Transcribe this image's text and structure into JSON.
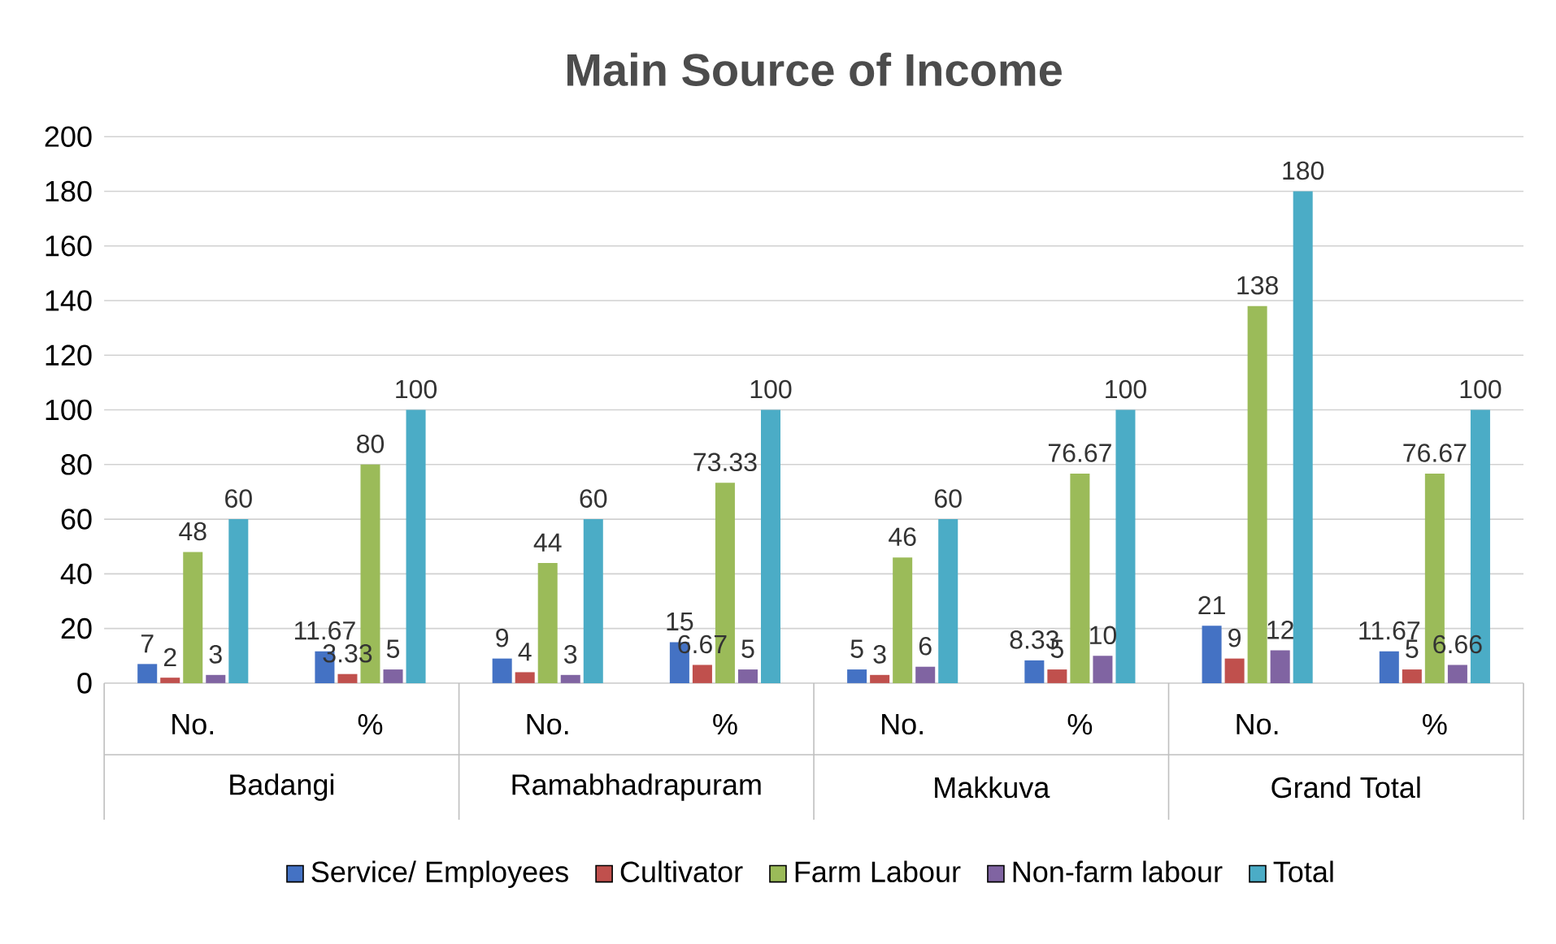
{
  "chart_data": {
    "type": "bar",
    "title": "Main Source of Income",
    "categories": [
      "No.",
      "%",
      "No.",
      "%",
      "No.",
      "%",
      "No.",
      "%"
    ],
    "annotations": [
      "Badangi",
      "Ramabhadrapuram",
      "Makkuva",
      "Grand Total"
    ],
    "series": [
      {
        "name": "Service/ Employees",
        "color": "#4472c4",
        "values": [
          7,
          11.67,
          9,
          15,
          5,
          8.33,
          21,
          11.67
        ]
      },
      {
        "name": "Cultivator",
        "color": "#c0504d",
        "values": [
          2,
          3.33,
          4,
          6.67,
          3,
          5,
          9,
          5
        ]
      },
      {
        "name": "Farm Labour",
        "color": "#9bbb59",
        "values": [
          48,
          80,
          44,
          73.33,
          46,
          76.67,
          138,
          76.67
        ]
      },
      {
        "name": "Non-farm labour",
        "color": "#8064a2",
        "values": [
          3,
          5,
          3,
          5,
          6,
          10,
          12,
          6.66
        ]
      },
      {
        "name": "Total",
        "color": "#4bacc6",
        "values": [
          60,
          100,
          60,
          100,
          60,
          100,
          180,
          100
        ]
      }
    ],
    "ylim": [
      0,
      200
    ],
    "yticks": [
      0,
      20,
      40,
      60,
      80,
      100,
      120,
      140,
      160,
      180,
      200
    ],
    "grid": "y",
    "legend": "bottom",
    "data_labels": true
  }
}
